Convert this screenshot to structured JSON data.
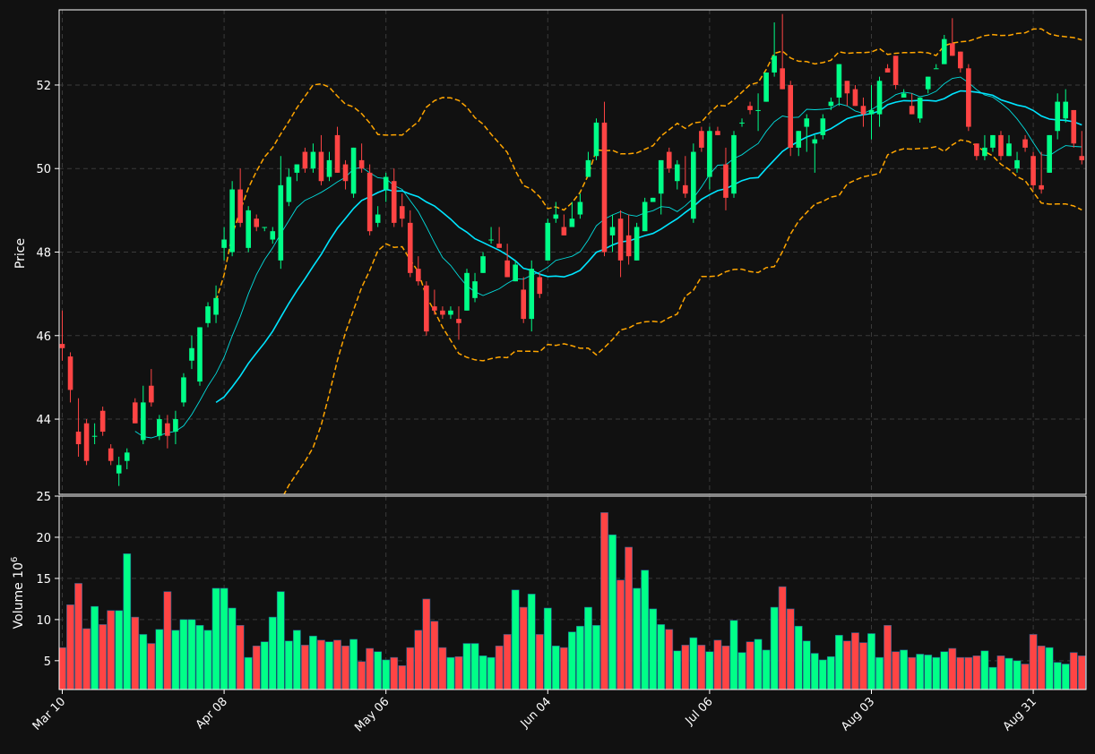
{
  "chart_data": [
    {
      "type": "candlestick",
      "ylabel": "Price",
      "ylim": [
        42.2,
        53.8
      ],
      "y_ticks": [
        44,
        46,
        48,
        50,
        52
      ],
      "grid": true,
      "colors": {
        "up": "#00ff88",
        "down": "#ff4444",
        "bollinger": "#ffa500",
        "sma_fast": "#00ffff",
        "sma_slow": "#00e5ff",
        "background": "#111111"
      },
      "x_ticks": [
        {
          "index": 0,
          "label": "Mar 10"
        },
        {
          "index": 20,
          "label": "Apr 08"
        },
        {
          "index": 40,
          "label": "May 06"
        },
        {
          "index": 60,
          "label": "Jun 04"
        },
        {
          "index": 80,
          "label": "Jul 06"
        },
        {
          "index": 100,
          "label": "Aug 03"
        },
        {
          "index": 120,
          "label": "Aug 31"
        }
      ],
      "candles": [
        [
          45.8,
          46.6,
          45.4,
          45.7
        ],
        [
          45.5,
          45.6,
          44.4,
          44.7
        ],
        [
          43.7,
          44.5,
          43.1,
          43.4
        ],
        [
          43.9,
          44.0,
          42.9,
          43.0
        ],
        [
          43.6,
          43.9,
          43.4,
          43.6
        ],
        [
          44.2,
          44.3,
          43.6,
          43.7
        ],
        [
          43.3,
          43.4,
          42.9,
          43.0
        ],
        [
          42.7,
          43.1,
          42.4,
          42.9
        ],
        [
          43.0,
          43.3,
          42.8,
          43.2
        ],
        [
          44.4,
          44.5,
          43.9,
          43.9
        ],
        [
          43.5,
          44.8,
          43.4,
          44.4
        ],
        [
          44.8,
          45.2,
          44.3,
          44.4
        ],
        [
          43.6,
          44.1,
          43.5,
          44.0
        ],
        [
          43.9,
          44.1,
          43.3,
          43.6
        ],
        [
          43.7,
          44.2,
          43.4,
          44.0
        ],
        [
          44.4,
          45.1,
          44.3,
          45.0
        ],
        [
          45.4,
          46.0,
          45.2,
          45.7
        ],
        [
          44.9,
          46.2,
          44.8,
          46.2
        ],
        [
          46.3,
          46.8,
          46.2,
          46.7
        ],
        [
          46.5,
          47.2,
          46.3,
          46.9
        ],
        [
          48.1,
          48.6,
          47.8,
          48.3
        ],
        [
          48.0,
          49.7,
          47.9,
          49.5
        ],
        [
          49.5,
          50.0,
          48.6,
          48.7
        ],
        [
          48.1,
          49.1,
          48.0,
          49.0
        ],
        [
          48.8,
          48.9,
          48.5,
          48.6
        ],
        [
          48.6,
          48.6,
          48.5,
          48.6
        ],
        [
          48.3,
          48.6,
          48.2,
          48.5
        ],
        [
          47.8,
          50.3,
          47.6,
          49.6
        ],
        [
          49.2,
          50.0,
          49.1,
          49.8
        ],
        [
          49.9,
          50.1,
          49.7,
          50.1
        ],
        [
          50.4,
          50.5,
          49.9,
          50.0
        ],
        [
          50.0,
          50.6,
          49.9,
          50.4
        ],
        [
          50.4,
          50.8,
          49.6,
          49.7
        ],
        [
          49.8,
          50.4,
          49.7,
          50.2
        ],
        [
          50.8,
          51.0,
          49.9,
          49.9
        ],
        [
          50.1,
          50.2,
          49.5,
          49.7
        ],
        [
          49.4,
          50.5,
          49.3,
          50.5
        ],
        [
          50.2,
          50.6,
          49.9,
          50.0
        ],
        [
          49.9,
          50.1,
          48.4,
          48.5
        ],
        [
          48.7,
          49.1,
          48.6,
          48.9
        ],
        [
          49.5,
          49.9,
          49.2,
          49.8
        ],
        [
          49.7,
          50.0,
          48.6,
          48.7
        ],
        [
          49.1,
          49.4,
          48.6,
          48.8
        ],
        [
          48.7,
          49.0,
          47.4,
          47.5
        ],
        [
          47.6,
          47.9,
          47.2,
          47.3
        ],
        [
          47.2,
          47.3,
          46.0,
          46.1
        ],
        [
          46.7,
          47.1,
          46.5,
          46.6
        ],
        [
          46.6,
          46.7,
          46.4,
          46.5
        ],
        [
          46.5,
          46.7,
          46.4,
          46.6
        ],
        [
          46.4,
          46.7,
          45.9,
          46.3
        ],
        [
          46.6,
          47.6,
          46.6,
          47.5
        ],
        [
          46.9,
          47.5,
          46.8,
          47.3
        ],
        [
          47.5,
          48.0,
          47.5,
          47.9
        ],
        [
          48.3,
          48.6,
          48.2,
          48.3
        ],
        [
          48.2,
          48.6,
          48.1,
          48.1
        ],
        [
          47.8,
          48.2,
          47.4,
          47.4
        ],
        [
          47.3,
          47.8,
          47.3,
          47.7
        ],
        [
          47.1,
          47.4,
          46.3,
          46.4
        ],
        [
          46.4,
          47.8,
          46.1,
          47.6
        ],
        [
          47.4,
          47.5,
          46.9,
          47.0
        ],
        [
          47.8,
          48.8,
          47.8,
          48.7
        ],
        [
          48.8,
          49.2,
          48.7,
          48.9
        ],
        [
          48.6,
          48.9,
          48.4,
          48.4
        ],
        [
          48.6,
          49.2,
          48.6,
          48.8
        ],
        [
          48.9,
          49.4,
          48.8,
          49.2
        ],
        [
          49.8,
          50.4,
          49.8,
          50.2
        ],
        [
          50.3,
          51.2,
          50.2,
          51.1
        ],
        [
          51.1,
          51.6,
          47.9,
          48.0
        ],
        [
          48.4,
          48.9,
          48.0,
          48.6
        ],
        [
          48.8,
          49.0,
          47.4,
          47.8
        ],
        [
          48.4,
          48.9,
          47.7,
          47.9
        ],
        [
          47.8,
          48.7,
          47.8,
          48.6
        ],
        [
          48.5,
          49.3,
          48.5,
          49.2
        ],
        [
          49.2,
          49.3,
          49.2,
          49.3
        ],
        [
          49.4,
          50.2,
          48.9,
          50.2
        ],
        [
          50.4,
          50.5,
          49.9,
          50.0
        ],
        [
          49.7,
          50.2,
          49.5,
          50.1
        ],
        [
          49.6,
          50.3,
          49.3,
          49.4
        ],
        [
          48.8,
          50.6,
          48.7,
          50.4
        ],
        [
          50.9,
          51.0,
          50.4,
          50.5
        ],
        [
          49.8,
          51.0,
          49.5,
          50.9
        ],
        [
          50.9,
          51.0,
          50.8,
          50.8
        ],
        [
          50.1,
          50.5,
          49.0,
          49.3
        ],
        [
          49.4,
          50.9,
          49.3,
          50.8
        ],
        [
          51.1,
          51.2,
          51.0,
          51.1
        ],
        [
          51.5,
          51.6,
          51.3,
          51.4
        ],
        [
          51.4,
          51.8,
          50.9,
          51.4
        ],
        [
          51.6,
          52.3,
          51.6,
          52.3
        ],
        [
          52.3,
          53.5,
          52.2,
          52.7
        ],
        [
          52.4,
          53.7,
          51.9,
          51.9
        ],
        [
          52.0,
          52.1,
          50.3,
          50.5
        ],
        [
          50.5,
          50.9,
          50.3,
          50.9
        ],
        [
          51.0,
          51.3,
          50.4,
          51.2
        ],
        [
          50.6,
          50.8,
          49.9,
          50.7
        ],
        [
          50.8,
          51.3,
          50.7,
          51.2
        ],
        [
          51.5,
          51.7,
          51.4,
          51.6
        ],
        [
          51.7,
          52.5,
          51.5,
          52.5
        ],
        [
          52.1,
          52.1,
          51.5,
          51.8
        ],
        [
          51.9,
          52.0,
          51.5,
          51.5
        ],
        [
          51.5,
          51.7,
          51.0,
          51.3
        ],
        [
          51.3,
          52.0,
          50.7,
          51.4
        ],
        [
          51.3,
          52.2,
          51.0,
          52.1
        ],
        [
          52.4,
          52.5,
          52.3,
          52.3
        ],
        [
          52.7,
          52.7,
          51.9,
          52.0
        ],
        [
          51.7,
          51.9,
          51.7,
          51.8
        ],
        [
          51.5,
          51.8,
          51.3,
          51.3
        ],
        [
          51.2,
          51.7,
          51.1,
          51.7
        ],
        [
          51.9,
          52.2,
          51.8,
          52.2
        ],
        [
          52.4,
          52.5,
          52.4,
          52.4
        ],
        [
          52.5,
          53.2,
          52.5,
          53.1
        ],
        [
          53.0,
          53.6,
          52.7,
          52.7
        ],
        [
          52.8,
          52.8,
          52.3,
          52.4
        ],
        [
          52.4,
          52.5,
          50.9,
          51.0
        ],
        [
          50.6,
          50.6,
          50.2,
          50.3
        ],
        [
          50.3,
          50.8,
          50.2,
          50.5
        ],
        [
          50.5,
          50.8,
          50.4,
          50.8
        ],
        [
          50.8,
          50.9,
          50.2,
          50.3
        ],
        [
          50.3,
          50.8,
          50.3,
          50.6
        ],
        [
          50.0,
          50.4,
          49.9,
          50.2
        ],
        [
          50.7,
          50.8,
          50.4,
          50.5
        ],
        [
          50.3,
          50.4,
          49.5,
          49.6
        ],
        [
          49.6,
          50.4,
          49.4,
          49.5
        ],
        [
          49.9,
          50.8,
          49.9,
          50.8
        ],
        [
          50.9,
          51.8,
          50.7,
          51.6
        ],
        [
          51.2,
          51.9,
          51.1,
          51.6
        ],
        [
          51.4,
          51.4,
          50.5,
          50.6
        ],
        [
          50.3,
          50.9,
          50.1,
          50.2
        ]
      ],
      "sma_fast": [
        null,
        null,
        null,
        null,
        null,
        null,
        null,
        null,
        null,
        null,
        null,
        null,
        null,
        null,
        null,
        null,
        null,
        null,
        null,
        null,
        null,
        null,
        null,
        null,
        null,
        null,
        null,
        null,
        null,
        null,
        null,
        null,
        null,
        null,
        null,
        null,
        null,
        null,
        null,
        null,
        null,
        null,
        null,
        null,
        null,
        null,
        null,
        null,
        null,
        null,
        null,
        null,
        null,
        null,
        null,
        null,
        null,
        null,
        null,
        null,
        null,
        null,
        null,
        null,
        null,
        null,
        null,
        null,
        null,
        null,
        null,
        null,
        null,
        null,
        null,
        null,
        null,
        null,
        null,
        null,
        null,
        null,
        null,
        null,
        null,
        null,
        null,
        null,
        null,
        null,
        null,
        null,
        null,
        null,
        null,
        null,
        null,
        null,
        null,
        null,
        null,
        null,
        null,
        null,
        null,
        null,
        null,
        null,
        null,
        null,
        null,
        null,
        null,
        null,
        null,
        null,
        null,
        null,
        null,
        null,
        null,
        null,
        null,
        null,
        null,
        null,
        null,
        null,
        null,
        null,
        null,
        null,
        null,
        null,
        null
      ],
      "volume_ylabel": "Volume  10^6",
      "volume_ylim": [
        1.5,
        25
      ],
      "volume_ticks": [
        5,
        10,
        15,
        20,
        25
      ],
      "volume": [
        6.6,
        11.8,
        14.4,
        8.9,
        11.6,
        9.4,
        11.1,
        11.1,
        18.0,
        10.3,
        8.2,
        7.1,
        8.8,
        13.4,
        8.7,
        10.0,
        10.0,
        9.3,
        8.7,
        13.8,
        13.8,
        11.4,
        9.3,
        5.4,
        6.8,
        7.3,
        10.3,
        13.4,
        7.4,
        8.7,
        6.9,
        8.0,
        7.5,
        7.3,
        7.5,
        6.8,
        7.6,
        4.9,
        6.5,
        6.1,
        5.1,
        5.4,
        4.4,
        6.6,
        8.7,
        12.5,
        9.8,
        6.6,
        5.4,
        5.5,
        7.1,
        7.1,
        5.6,
        5.4,
        6.8,
        8.2,
        13.6,
        11.5,
        13.1,
        8.2,
        11.4,
        6.8,
        6.6,
        8.5,
        9.2,
        11.5,
        9.3,
        23.0,
        20.3,
        14.8,
        18.8,
        13.8,
        16.0,
        11.3,
        9.4,
        8.8,
        6.2,
        6.9,
        7.8,
        6.9,
        6.1,
        7.5,
        6.8,
        9.9,
        6.0,
        7.3,
        7.6,
        6.3,
        11.5,
        14.0,
        11.3,
        9.2,
        7.4,
        5.9,
        5.1,
        5.5,
        8.1,
        7.4,
        8.4,
        7.2,
        8.3,
        5.4,
        9.3,
        6.1,
        6.3,
        5.4,
        5.8,
        5.7,
        5.4,
        6.1,
        6.5,
        5.4,
        5.4,
        5.6,
        6.2,
        4.2,
        5.6,
        5.3,
        5.0,
        4.6,
        8.2,
        6.8,
        6.6,
        4.8,
        4.6,
        6.0,
        5.6
      ]
    }
  ]
}
